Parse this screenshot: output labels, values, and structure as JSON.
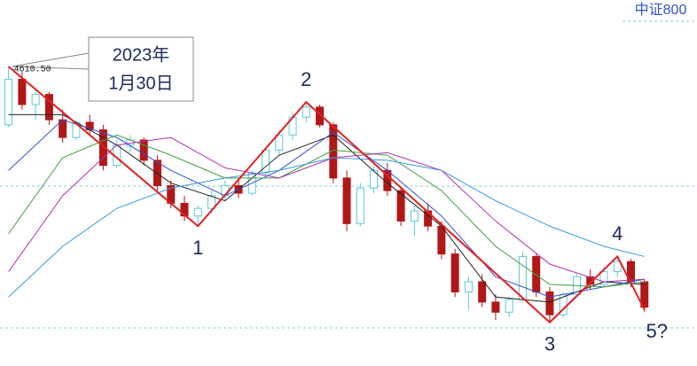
{
  "chart_data": {
    "type": "candlestick",
    "title": "中证800",
    "annotation": [
      "2023年",
      "1月30日"
    ],
    "peak": {
      "label": "4610.50",
      "value": 4610.5,
      "x": 0
    },
    "ylim": [
      3427.5,
      4873
    ],
    "xlim": [
      -0.5,
      48
    ],
    "hlines": [
      4138,
      3578
    ],
    "up_color": "#5bc8d8",
    "down_color": "#b01818",
    "open": [
      4380,
      4560,
      4460,
      4500,
      4400,
      4330,
      4390,
      4360,
      4220,
      4300,
      4320,
      4240,
      4140,
      4070,
      4020,
      4050,
      4100,
      4140,
      4110,
      4190,
      4280,
      4340,
      4410,
      4450,
      4380,
      4170,
      3990,
      4130,
      4200,
      4120,
      4000,
      4040,
      3980,
      3870,
      3720,
      3760,
      3680,
      3640,
      3690,
      3860,
      3720,
      3630,
      3710,
      3780,
      3750,
      3800,
      3840,
      3760
    ],
    "high": [
      4610,
      4590,
      4520,
      4510,
      4440,
      4400,
      4420,
      4380,
      4320,
      4340,
      4330,
      4260,
      4160,
      4100,
      4060,
      4120,
      4160,
      4170,
      4200,
      4290,
      4360,
      4430,
      4470,
      4460,
      4390,
      4200,
      4150,
      4220,
      4230,
      4130,
      4060,
      4070,
      4000,
      3890,
      3780,
      3790,
      3710,
      3700,
      3880,
      3870,
      3740,
      3720,
      3790,
      3810,
      3820,
      3860,
      3850,
      3770
    ],
    "low": [
      4370,
      4440,
      4400,
      4380,
      4310,
      4320,
      4340,
      4200,
      4210,
      4270,
      4220,
      4120,
      4050,
      4000,
      3980,
      4030,
      4080,
      4090,
      4100,
      4180,
      4260,
      4320,
      4390,
      4370,
      4150,
      3960,
      3980,
      4110,
      4100,
      3980,
      3940,
      3960,
      3850,
      3700,
      3650,
      3660,
      3610,
      3620,
      3680,
      3700,
      3600,
      3620,
      3700,
      3730,
      3740,
      3780,
      3740,
      3640
    ],
    "close": [
      4560,
      4460,
      4500,
      4400,
      4330,
      4390,
      4360,
      4220,
      4300,
      4320,
      4240,
      4140,
      4070,
      4020,
      4050,
      4100,
      4140,
      4110,
      4190,
      4280,
      4340,
      4410,
      4450,
      4380,
      4170,
      3990,
      4130,
      4200,
      4120,
      4000,
      4040,
      3980,
      3870,
      3720,
      3760,
      3680,
      3640,
      3690,
      3860,
      3720,
      3630,
      3710,
      3780,
      3750,
      3800,
      3840,
      3760,
      3660
    ],
    "ma_x": [
      0,
      4,
      8,
      12,
      16,
      20,
      24,
      28,
      32,
      36,
      40,
      44,
      47
    ],
    "series": [
      {
        "color": "#222222",
        "values": [
          4420,
          4420,
          4300,
          4150,
          4080,
          4260,
          4340,
          4150,
          3980,
          3700,
          3680,
          3760,
          3750
        ]
      },
      {
        "color": "#3050d0",
        "values": [
          4200,
          4400,
          4330,
          4200,
          4100,
          4200,
          4350,
          4200,
          4020,
          3780,
          3700,
          3740,
          3770
        ]
      },
      {
        "color": "#40a040",
        "values": [
          3950,
          4250,
          4340,
          4260,
          4170,
          4170,
          4280,
          4260,
          4120,
          3900,
          3750,
          3740,
          3760
        ]
      },
      {
        "color": "#b030b0",
        "values": [
          3800,
          4100,
          4300,
          4330,
          4210,
          4170,
          4250,
          4270,
          4200,
          4000,
          3830,
          3760,
          3770
        ]
      },
      {
        "color": "#3a9ad9",
        "values": [
          3700,
          3900,
          4050,
          4130,
          4170,
          4200,
          4250,
          4240,
          4200,
          4080,
          3980,
          3900,
          3860
        ]
      }
    ],
    "wave": {
      "color": "#e02020",
      "x": [
        0,
        14,
        22,
        40,
        45,
        47
      ],
      "values": [
        4610,
        3980,
        4470,
        3600,
        3860,
        3650
      ],
      "labels": [
        null,
        "1",
        "2",
        "3",
        "4",
        "5?"
      ]
    }
  }
}
